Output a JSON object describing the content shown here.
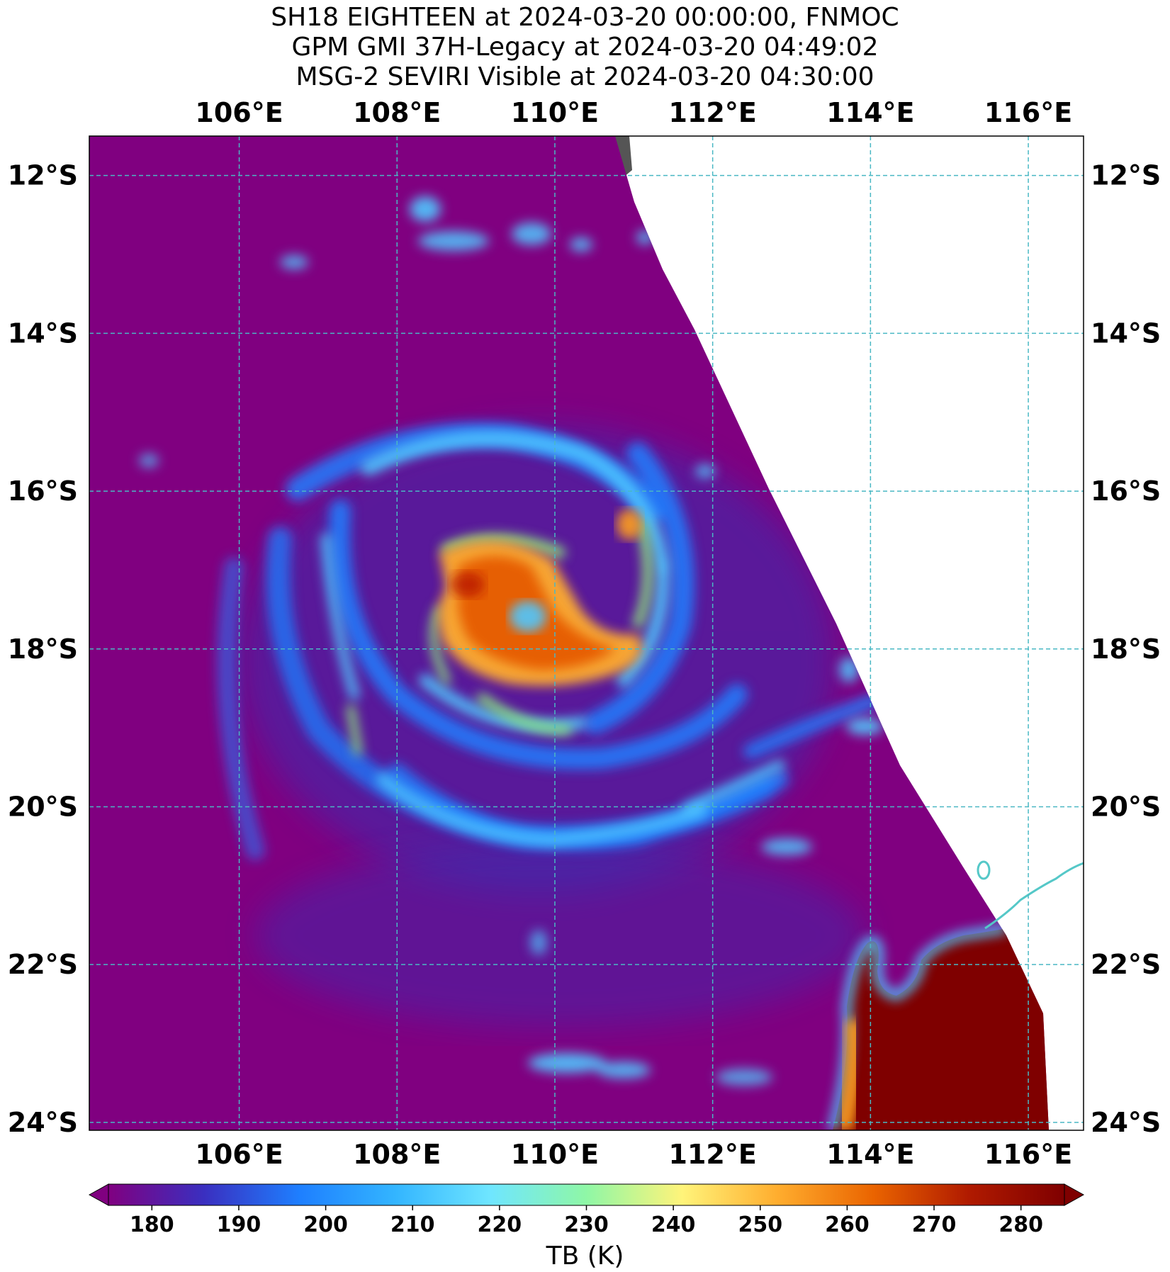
{
  "title": {
    "line1": "SH18 EIGHTEEN at 2024-03-20 00:00:00, FNMOC",
    "line2": "GPM GMI 37H-Legacy at 2024-03-20 04:49:02",
    "line3": "MSG-2 SEVIRI Visible at 2024-03-20 04:30:00"
  },
  "map": {
    "lon_range": [
      104.1,
      116.7
    ],
    "lat_range": [
      -24.1,
      -11.5
    ],
    "lon_ticks": [
      "106°E",
      "108°E",
      "110°E",
      "112°E",
      "114°E",
      "116°E"
    ],
    "lon_tick_values": [
      106,
      108,
      110,
      112,
      114,
      116
    ],
    "lat_ticks": [
      "12°S",
      "14°S",
      "16°S",
      "18°S",
      "20°S",
      "22°S",
      "24°S"
    ],
    "lat_tick_values": [
      -12,
      -14,
      -16,
      -18,
      -20,
      -22,
      -24
    ],
    "gridline_color": "#4ab8c4",
    "coastline_color": "#55c8c8",
    "land_tb_color": "#7f0000",
    "background_tb_color": "#800080"
  },
  "colorbar": {
    "label": "TB (K)",
    "ticks": [
      "180",
      "190",
      "200",
      "210",
      "220",
      "230",
      "240",
      "250",
      "260",
      "270",
      "280"
    ],
    "tick_values": [
      180,
      190,
      200,
      210,
      220,
      230,
      240,
      250,
      260,
      270,
      280
    ],
    "range": [
      175,
      285
    ],
    "colors": [
      "#800080",
      "#2f3dd8",
      "#1e90ff",
      "#5fd0ff",
      "#7fffd4",
      "#8ff07a",
      "#fff27a",
      "#ff9f1c",
      "#e65c00",
      "#b81400",
      "#7f0000"
    ]
  }
}
